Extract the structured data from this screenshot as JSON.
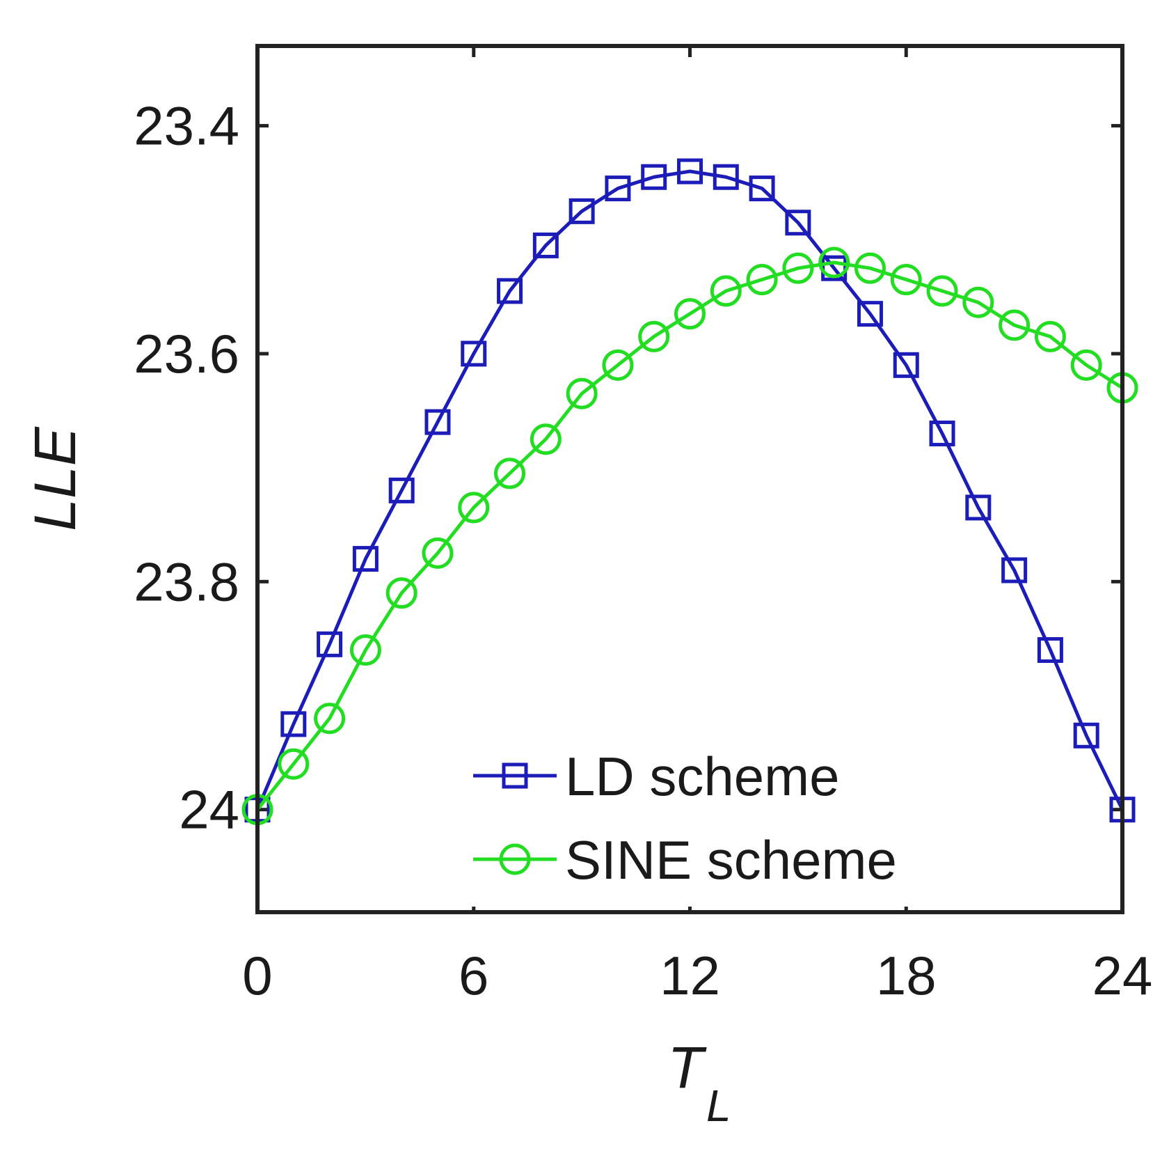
{
  "chart_data": {
    "type": "line",
    "title": "",
    "xlabel": "T",
    "xlabel_subscript": "L",
    "ylabel": "LLE",
    "xlim": [
      0,
      24
    ],
    "ylim": [
      24.09,
      23.33
    ],
    "y_reversed": true,
    "xticks": [
      0,
      6,
      12,
      18,
      24
    ],
    "yticks": [
      23.4,
      23.6,
      23.8,
      24
    ],
    "ytick_labels": [
      "23.4",
      "23.6",
      "23.8",
      "24"
    ],
    "legend_position": "bottom-right",
    "series": [
      {
        "name": "LD scheme",
        "color": "#1c1cb8",
        "marker": "square",
        "x": [
          0,
          1,
          2,
          3,
          4,
          5,
          6,
          7,
          8,
          9,
          10,
          11,
          12,
          13,
          14,
          15,
          16,
          17,
          18,
          19,
          20,
          21,
          22,
          23,
          24
        ],
        "y": [
          24.0,
          23.925,
          23.855,
          23.78,
          23.72,
          23.66,
          23.6,
          23.545,
          23.505,
          23.475,
          23.455,
          23.445,
          23.44,
          23.445,
          23.455,
          23.485,
          23.525,
          23.565,
          23.61,
          23.67,
          23.735,
          23.79,
          23.86,
          23.935,
          24.0
        ]
      },
      {
        "name": "SINE scheme",
        "color": "#22dd22",
        "marker": "circle",
        "x": [
          0,
          1,
          2,
          3,
          4,
          5,
          6,
          7,
          8,
          9,
          10,
          11,
          12,
          13,
          14,
          15,
          16,
          17,
          18,
          19,
          20,
          21,
          22,
          23,
          24
        ],
        "y": [
          24.0,
          23.96,
          23.92,
          23.86,
          23.81,
          23.775,
          23.735,
          23.705,
          23.675,
          23.635,
          23.61,
          23.585,
          23.565,
          23.545,
          23.535,
          23.525,
          23.52,
          23.525,
          23.535,
          23.545,
          23.555,
          23.575,
          23.585,
          23.61,
          23.63
        ]
      }
    ]
  }
}
